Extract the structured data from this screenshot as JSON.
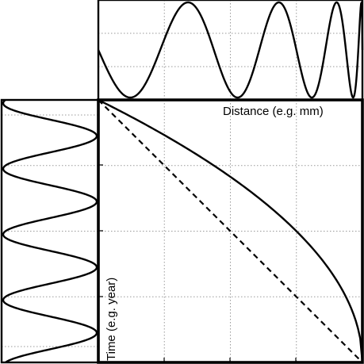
{
  "chart_data": [
    {
      "panel": "top",
      "type": "line",
      "description_visible": "oscillating signal versus distance with increasing frequency",
      "series": [
        {
          "points": [
            [
              0.0,
              0.5
            ],
            [
              0.11,
              1.0
            ],
            [
              0.33,
              0.0
            ],
            [
              0.53,
              1.0
            ],
            [
              0.7,
              0.0
            ],
            [
              0.84,
              1.0
            ],
            [
              0.94,
              0.0
            ],
            [
              1.0,
              1.0
            ]
          ]
        }
      ],
      "grid": "dotted"
    },
    {
      "panel": "left",
      "type": "line",
      "description_visible": "regular sinusoidal signal versus time",
      "series": [
        {
          "points": [
            [
              0.08,
              1.0
            ],
            [
              0.21,
              0.0
            ],
            [
              0.34,
              1.0
            ],
            [
              0.47,
              0.0
            ],
            [
              0.6,
              1.0
            ],
            [
              0.73,
              0.0
            ],
            [
              0.86,
              1.0
            ],
            [
              0.99,
              0.0
            ]
          ]
        }
      ],
      "grid": "dotted"
    },
    {
      "panel": "main",
      "type": "line",
      "xlabel": "Distance (e.g. mm)",
      "ylabel": "Time (e.g. year)",
      "xlim": [
        0,
        1
      ],
      "ylim": [
        0,
        1
      ],
      "grid": "dotted",
      "series": [
        {
          "style": "solid",
          "x": [
            0.0,
            0.1,
            0.2,
            0.3,
            0.4,
            0.5,
            0.6,
            0.7,
            0.8,
            0.9,
            1.0
          ],
          "y": [
            1.0,
            0.951,
            0.894,
            0.837,
            0.775,
            0.707,
            0.632,
            0.548,
            0.447,
            0.316,
            0.0
          ]
        },
        {
          "style": "dashed",
          "x": [
            0.0,
            1.0
          ],
          "y": [
            1.0,
            0.0
          ]
        }
      ]
    }
  ],
  "labels": {
    "xlabel": "Distance (e.g. mm)",
    "ylabel": "Time (e.g. year)"
  }
}
